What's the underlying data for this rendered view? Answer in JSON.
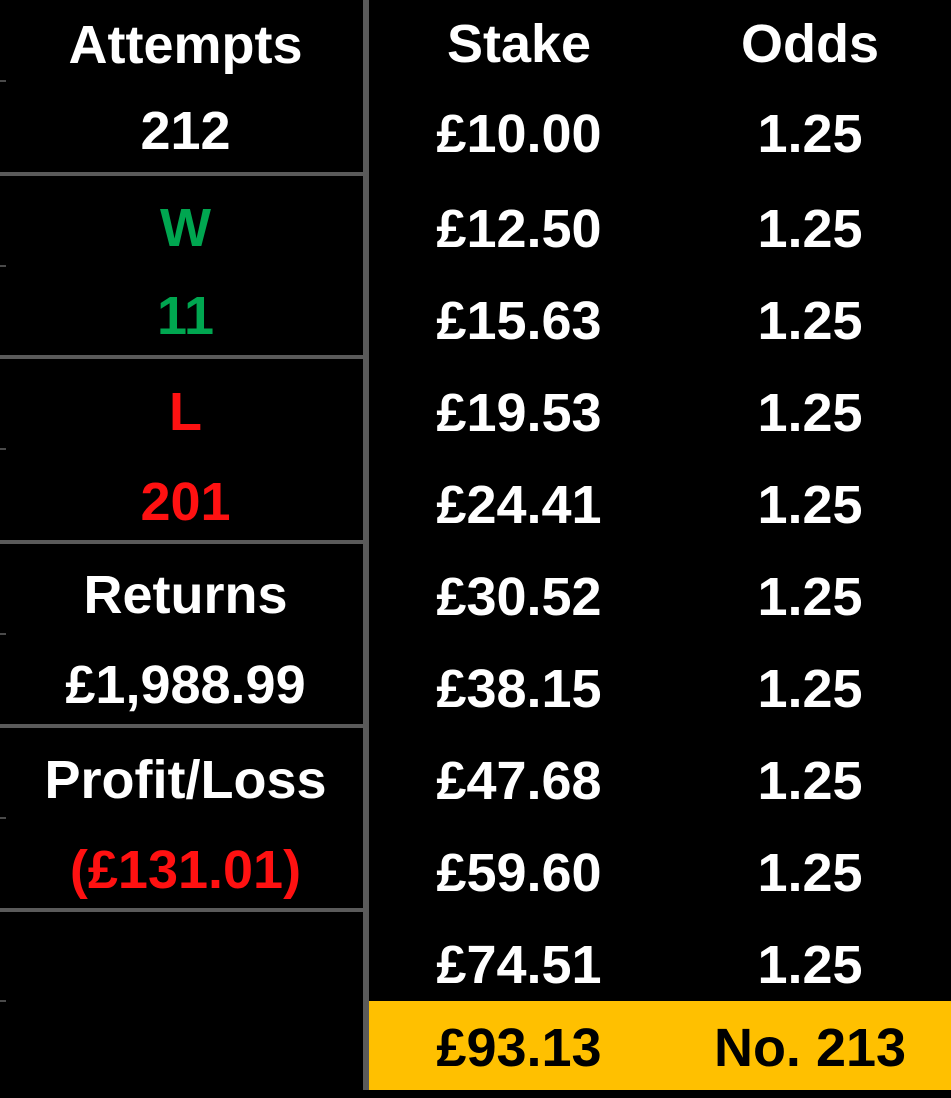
{
  "summary": {
    "attempts_label": "Attempts",
    "attempts_value": "212",
    "wins_label": "W",
    "wins_value": "11",
    "losses_label": "L",
    "losses_value": "201",
    "returns_label": "Returns",
    "returns_value": "£1,988.99",
    "profit_loss_label": "Profit/Loss",
    "profit_loss_value": "(£131.01)"
  },
  "table": {
    "headers": {
      "stake": "Stake",
      "odds": "Odds"
    },
    "rows": [
      {
        "stake": "£10.00",
        "odds": "1.25"
      },
      {
        "stake": "£12.50",
        "odds": "1.25"
      },
      {
        "stake": "£15.63",
        "odds": "1.25"
      },
      {
        "stake": "£19.53",
        "odds": "1.25"
      },
      {
        "stake": "£24.41",
        "odds": "1.25"
      },
      {
        "stake": "£30.52",
        "odds": "1.25"
      },
      {
        "stake": "£38.15",
        "odds": "1.25"
      },
      {
        "stake": "£47.68",
        "odds": "1.25"
      },
      {
        "stake": "£59.60",
        "odds": "1.25"
      },
      {
        "stake": "£74.51",
        "odds": "1.25"
      }
    ],
    "current": {
      "stake": "£93.13",
      "odds": "No. 213"
    }
  },
  "colors": {
    "background": "#000000",
    "text": "#ffffff",
    "win": "#00a650",
    "loss": "#ff1111",
    "highlight": "#ffc000",
    "gridline": "#5a5a5a",
    "current_text": "#000000"
  }
}
